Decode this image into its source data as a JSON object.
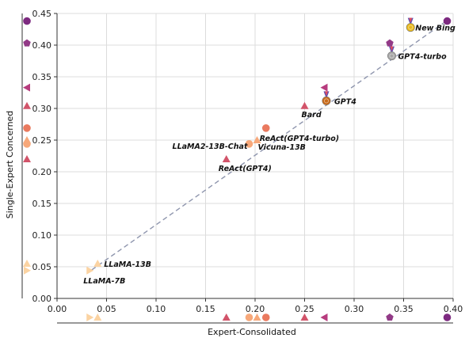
{
  "chart_data": {
    "type": "scatter",
    "title": "",
    "xlabel": "Expert-Consolidated",
    "ylabel": "Single-Expert Concerned",
    "xlim": [
      0,
      0.4
    ],
    "ylim": [
      0,
      0.45
    ],
    "xticks": [
      "0.00",
      "0.05",
      "0.10",
      "0.15",
      "0.20",
      "0.25",
      "0.30",
      "0.35",
      "0.40"
    ],
    "yticks": [
      "0.00",
      "0.05",
      "0.10",
      "0.15",
      "0.20",
      "0.25",
      "0.30",
      "0.35",
      "0.40",
      "0.45"
    ],
    "grid": true,
    "legend": "none",
    "marginal_markers": true,
    "colors": {
      "llama": "#fbd3a2",
      "vicuna": "#f7a87a",
      "react": "#ea7a5f",
      "triangle_red": "#d2546a",
      "left_triangle": "#b73c7e",
      "pentagon": "#923a87",
      "circle_purple": "#7d2a80",
      "trend": "#8e95ad",
      "gold_medal": "#e8b81a",
      "silver_medal": "#a6a6a6",
      "bronze_medal": "#c96a1a"
    },
    "trend_line": {
      "style": "dashed",
      "from": [
        0.035,
        0.045
      ],
      "to": [
        0.395,
        0.44
      ]
    },
    "points": [
      {
        "label": "LLaMA-7B",
        "x": 0.033,
        "y": 0.044,
        "marker": "triangle-right",
        "color": "#fbd3a2"
      },
      {
        "label": "LLaMA-13B",
        "x": 0.041,
        "y": 0.055,
        "marker": "triangle-up",
        "color": "#fbd3a2"
      },
      {
        "label": "LLaMA2-13B-Chat",
        "x": 0.194,
        "y": 0.244,
        "marker": "circle",
        "color": "#f7a87a"
      },
      {
        "label": "Vicuna-13B",
        "x": 0.202,
        "y": 0.25,
        "marker": "triangle-up",
        "color": "#f7a87a"
      },
      {
        "label": "ReAct(GPT4-turbo)",
        "x": 0.211,
        "y": 0.269,
        "marker": "circle",
        "color": "#ea7a5f"
      },
      {
        "label": "ReAct(GPT4)",
        "x": 0.171,
        "y": 0.22,
        "marker": "triangle-up",
        "color": "#d2546a"
      },
      {
        "label": "Bard",
        "x": 0.25,
        "y": 0.304,
        "marker": "triangle-up",
        "color": "#d2546a"
      },
      {
        "label": "GPT4",
        "x": 0.27,
        "y": 0.333,
        "marker": "triangle-left",
        "color": "#b73c7e"
      },
      {
        "label": "GPT4-turbo",
        "x": 0.336,
        "y": 0.403,
        "marker": "pentagon",
        "color": "#923a87"
      },
      {
        "label": "New Bing",
        "x": 0.394,
        "y": 0.438,
        "marker": "circle",
        "color": "#7d2a80"
      }
    ],
    "medals": [
      {
        "rank": "gold",
        "x": 0.357,
        "y": 0.428,
        "label_ref": "New Bing"
      },
      {
        "rank": "silver",
        "x": 0.338,
        "y": 0.383,
        "label_ref": "GPT4-turbo"
      },
      {
        "rank": "bronze",
        "x": 0.272,
        "y": 0.312,
        "label_ref": "GPT4"
      }
    ]
  }
}
